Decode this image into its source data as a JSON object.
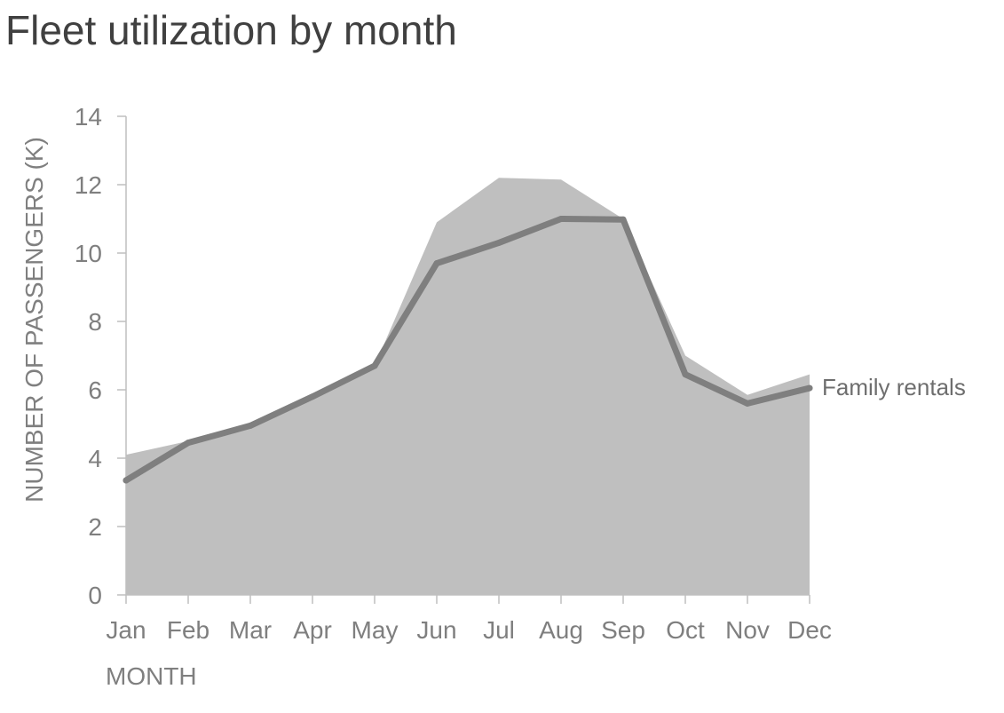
{
  "chart_data": {
    "type": "area",
    "title": "Fleet utilization by month",
    "xlabel": "MONTH",
    "ylabel": "NUMBER OF PASSENGERS (K)",
    "categories": [
      "Jan",
      "Feb",
      "Mar",
      "Apr",
      "May",
      "Jun",
      "Jul",
      "Aug",
      "Sep",
      "Oct",
      "Nov",
      "Dec"
    ],
    "ylim": [
      0,
      14
    ],
    "yticks": [
      0,
      2,
      4,
      6,
      8,
      10,
      12,
      14
    ],
    "grid": false,
    "series": [
      {
        "kind": "area",
        "values": [
          4.1,
          4.5,
          4.9,
          5.8,
          6.7,
          10.9,
          12.2,
          12.15,
          11.0,
          7.0,
          5.85,
          6.45
        ],
        "color": "#bfbfbf"
      },
      {
        "name": "Family rentals",
        "kind": "line",
        "values": [
          3.35,
          4.45,
          4.95,
          5.8,
          6.7,
          9.7,
          10.3,
          11.0,
          10.98,
          6.45,
          5.6,
          6.05
        ],
        "color": "#7f7f7f"
      }
    ],
    "colors": {
      "title": "#404040",
      "axis": "#bfbfbf",
      "tick_text": "#7f7f7f"
    }
  }
}
